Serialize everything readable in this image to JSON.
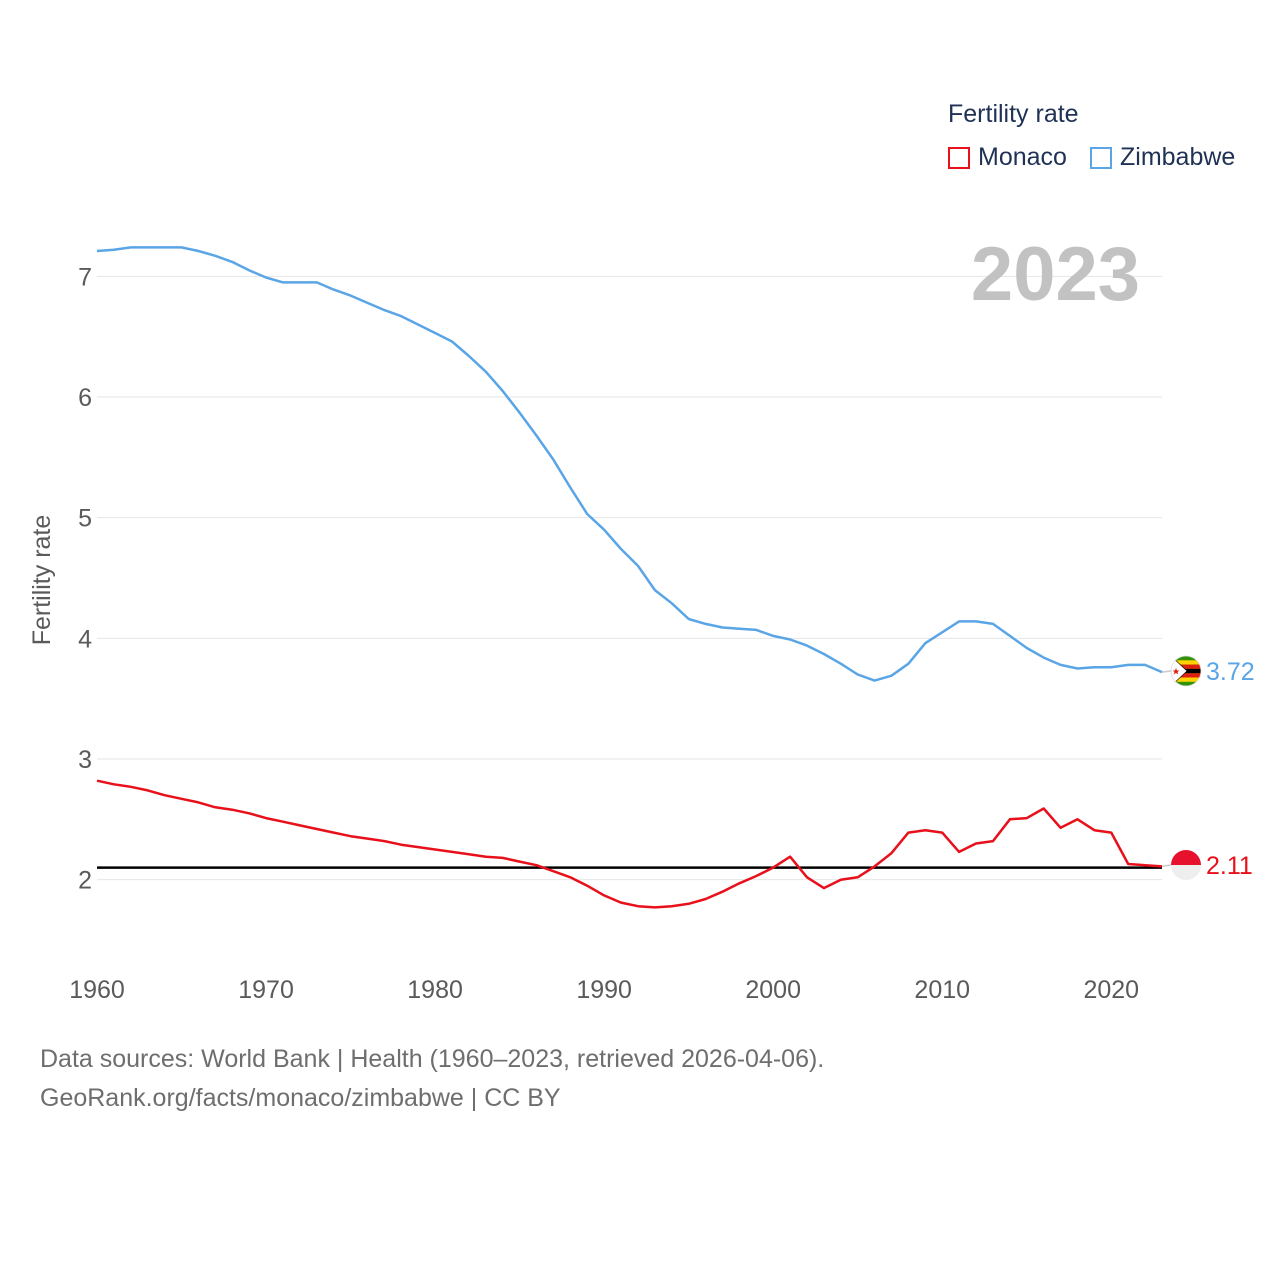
{
  "legend": {
    "title": "Fertility rate",
    "items": [
      {
        "label": "Monaco",
        "color": "#e8101a"
      },
      {
        "label": "Zimbabwe",
        "color": "#5aa5e6"
      }
    ]
  },
  "year_label": "2023",
  "source": {
    "line1": "Data sources: World Bank | Health (1960–2023, retrieved 2026-04-06).",
    "line2": "GeoRank.org/facts/monaco/zimbabwe | CC BY"
  },
  "chart_data": {
    "type": "line",
    "title": "",
    "xlabel": "",
    "ylabel": "Fertility rate",
    "xlim": [
      1960,
      2023
    ],
    "ylim": [
      1.5,
      7.5
    ],
    "x_ticks": [
      1960,
      1970,
      1980,
      1990,
      2000,
      2010,
      2020
    ],
    "y_ticks": [
      2,
      3,
      4,
      5,
      6,
      7
    ],
    "x_tick_labels": [
      "1960",
      "1970",
      "1980",
      "1990",
      "2000",
      "2010",
      "2020"
    ],
    "y_tick_labels": [
      "2",
      "3",
      "4",
      "5",
      "6",
      "7"
    ],
    "reference_line": {
      "y": 2.1,
      "color": "#000000"
    },
    "x": [
      1960,
      1961,
      1962,
      1963,
      1964,
      1965,
      1966,
      1967,
      1968,
      1969,
      1970,
      1971,
      1972,
      1973,
      1974,
      1975,
      1976,
      1977,
      1978,
      1979,
      1980,
      1981,
      1982,
      1983,
      1984,
      1985,
      1986,
      1987,
      1988,
      1989,
      1990,
      1991,
      1992,
      1993,
      1994,
      1995,
      1996,
      1997,
      1998,
      1999,
      2000,
      2001,
      2002,
      2003,
      2004,
      2005,
      2006,
      2007,
      2008,
      2009,
      2010,
      2011,
      2012,
      2013,
      2014,
      2015,
      2016,
      2017,
      2018,
      2019,
      2020,
      2021,
      2022,
      2023
    ],
    "series": [
      {
        "name": "Monaco",
        "color": "#e8101a",
        "end_label": "2.11",
        "values": [
          2.82,
          2.79,
          2.77,
          2.74,
          2.7,
          2.67,
          2.64,
          2.6,
          2.58,
          2.55,
          2.51,
          2.48,
          2.45,
          2.42,
          2.39,
          2.36,
          2.34,
          2.32,
          2.29,
          2.27,
          2.25,
          2.23,
          2.21,
          2.19,
          2.18,
          2.15,
          2.12,
          2.07,
          2.02,
          1.95,
          1.87,
          1.81,
          1.78,
          1.77,
          1.78,
          1.8,
          1.84,
          1.9,
          1.97,
          2.03,
          2.1,
          2.19,
          2.02,
          1.93,
          2.0,
          2.02,
          2.11,
          2.22,
          2.39,
          2.41,
          2.39,
          2.23,
          2.3,
          2.32,
          2.5,
          2.51,
          2.59,
          2.43,
          2.5,
          2.41,
          2.39,
          2.13,
          2.12,
          2.11
        ]
      },
      {
        "name": "Zimbabwe",
        "color": "#5aa5e6",
        "end_label": "3.72",
        "values": [
          7.21,
          7.22,
          7.24,
          7.24,
          7.24,
          7.24,
          7.21,
          7.17,
          7.12,
          7.05,
          6.99,
          6.95,
          6.95,
          6.95,
          6.89,
          6.84,
          6.78,
          6.72,
          6.67,
          6.6,
          6.53,
          6.46,
          6.34,
          6.21,
          6.05,
          5.87,
          5.68,
          5.48,
          5.25,
          5.03,
          4.9,
          4.74,
          4.6,
          4.4,
          4.29,
          4.16,
          4.12,
          4.09,
          4.08,
          4.07,
          4.02,
          3.99,
          3.94,
          3.87,
          3.79,
          3.7,
          3.65,
          3.69,
          3.79,
          3.96,
          4.05,
          4.14,
          4.14,
          4.12,
          4.02,
          3.92,
          3.84,
          3.78,
          3.75,
          3.76,
          3.76,
          3.78,
          3.78,
          3.72
        ]
      }
    ]
  }
}
